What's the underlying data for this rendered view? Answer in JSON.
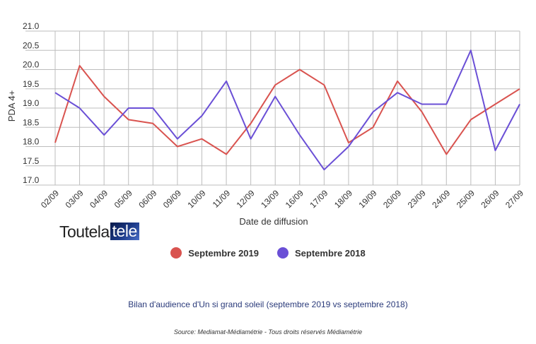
{
  "chart_data": {
    "type": "line",
    "categories": [
      "02/09",
      "03/09",
      "04/09",
      "05/09",
      "06/09",
      "09/09",
      "10/09",
      "11/09",
      "12/09",
      "13/09",
      "16/09",
      "17/09",
      "18/09",
      "19/09",
      "20/09",
      "23/09",
      "24/09",
      "25/09",
      "26/09",
      "27/09"
    ],
    "series": [
      {
        "name": "Septembre 2019",
        "color": "#d9534f",
        "values": [
          18.1,
          20.1,
          19.3,
          18.7,
          18.6,
          18.0,
          18.2,
          17.8,
          18.6,
          19.6,
          20.0,
          19.6,
          18.1,
          18.5,
          19.7,
          18.9,
          17.8,
          18.7,
          19.1,
          19.5
        ]
      },
      {
        "name": "Septembre 2018",
        "color": "#6a4fd6",
        "values": [
          19.4,
          19.0,
          18.3,
          19.0,
          19.0,
          18.2,
          18.8,
          19.7,
          18.2,
          19.3,
          18.3,
          17.4,
          18.0,
          18.9,
          19.4,
          19.1,
          19.1,
          20.5,
          17.9,
          19.1
        ]
      }
    ],
    "ylabel": "PDA 4+",
    "xlabel": "Date de diffusion",
    "ylim": [
      17.0,
      21.0
    ],
    "yticks": [
      "17.0",
      "17.5",
      "18.0",
      "18.5",
      "19.0",
      "19.5",
      "20.0",
      "20.5",
      "21.0"
    ],
    "grid": true,
    "legend_position": "bottom"
  },
  "logo": {
    "text_main": "Toutela",
    "text_tele": "tele"
  },
  "caption": "Bilan d'audience d'Un si grand soleil (septembre 2019 vs septembre 2018)",
  "source": "Source: Mediamat-Médiamétrie - Tous droits réservés Médiamétrie"
}
